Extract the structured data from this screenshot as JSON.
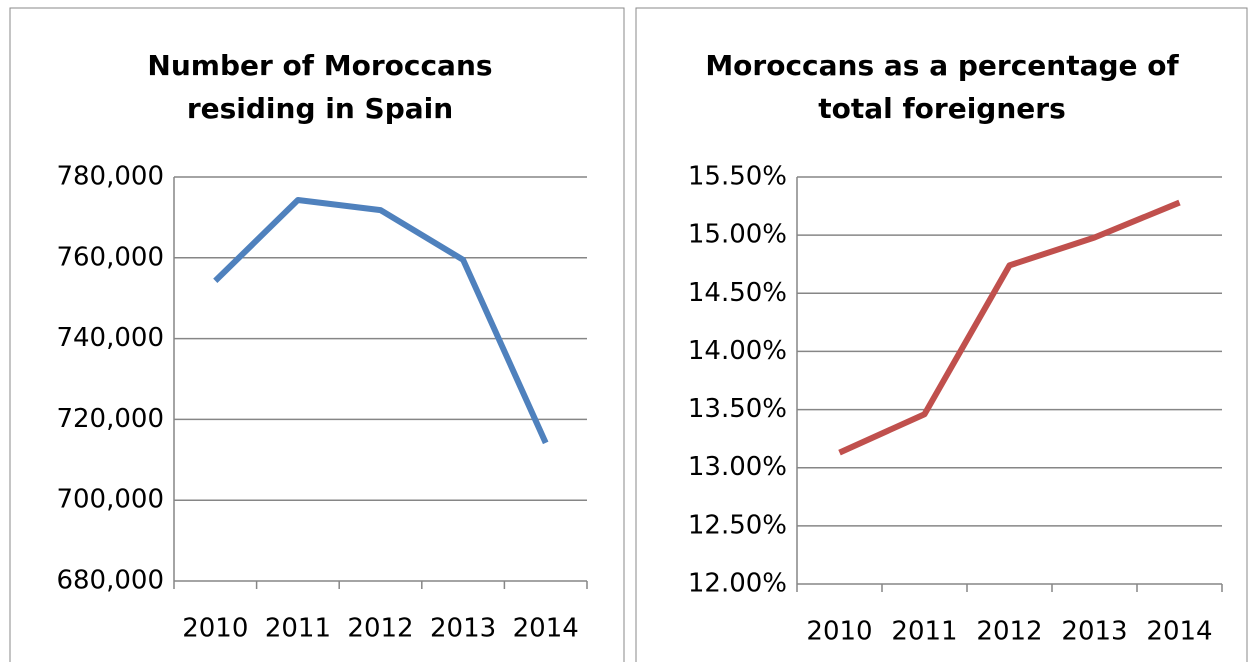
{
  "chart_data": [
    {
      "type": "line",
      "title": [
        "Number of Moroccans",
        "residing in Spain"
      ],
      "categories": [
        "2010",
        "2011",
        "2012",
        "2013",
        "2014"
      ],
      "series": [
        {
          "color": "#4f81bd",
          "values": [
            754300,
            774300,
            771800,
            759500,
            714200
          ]
        }
      ],
      "ylim": [
        680000,
        780000
      ],
      "yticks": [
        {
          "value": 680000,
          "label": "680,000"
        },
        {
          "value": 700000,
          "label": "700,000"
        },
        {
          "value": 720000,
          "label": "720,000"
        },
        {
          "value": 740000,
          "label": "740,000"
        },
        {
          "value": 760000,
          "label": "760,000"
        },
        {
          "value": 780000,
          "label": "780,000"
        }
      ],
      "grid": true
    },
    {
      "type": "line",
      "title": [
        "Moroccans as a percentage of",
        "total foreigners"
      ],
      "categories": [
        "2010",
        "2011",
        "2012",
        "2013",
        "2014"
      ],
      "series": [
        {
          "color": "#c0504d",
          "values": [
            13.13,
            13.46,
            14.74,
            14.98,
            15.28
          ]
        }
      ],
      "ylim": [
        12,
        15.5
      ],
      "yticks": [
        {
          "value": 12,
          "label": "12.00%"
        },
        {
          "value": 12.5,
          "label": "12.50%"
        },
        {
          "value": 13,
          "label": "13.00%"
        },
        {
          "value": 13.5,
          "label": "13.50%"
        },
        {
          "value": 14,
          "label": "14.00%"
        },
        {
          "value": 14.5,
          "label": "14.50%"
        },
        {
          "value": 15,
          "label": "15.00%"
        },
        {
          "value": 15.5,
          "label": "15.50%"
        }
      ],
      "grid": true
    }
  ]
}
